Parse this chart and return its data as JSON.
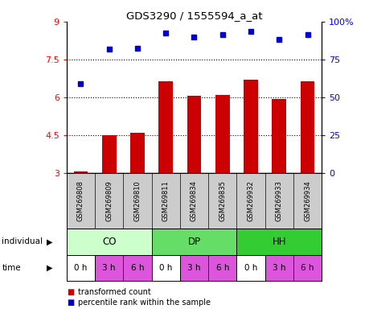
{
  "title": "GDS3290 / 1555594_a_at",
  "samples": [
    "GSM269808",
    "GSM269809",
    "GSM269810",
    "GSM269811",
    "GSM269834",
    "GSM269835",
    "GSM269932",
    "GSM269933",
    "GSM269934"
  ],
  "bar_values": [
    3.05,
    4.5,
    4.6,
    6.65,
    6.05,
    6.1,
    6.7,
    5.95,
    6.65
  ],
  "dot_values": [
    6.55,
    7.9,
    7.95,
    8.55,
    8.4,
    8.5,
    8.6,
    8.3,
    8.5
  ],
  "ylim_left": [
    3,
    9
  ],
  "ylim_right": [
    0,
    100
  ],
  "yticks_left": [
    3,
    4.5,
    6,
    7.5,
    9
  ],
  "yticks_right": [
    0,
    25,
    50,
    75,
    100
  ],
  "ytick_labels_left": [
    "3",
    "4.5",
    "6",
    "7.5",
    "9"
  ],
  "ytick_labels_right": [
    "0",
    "25",
    "50",
    "75",
    "100%"
  ],
  "hlines": [
    4.5,
    6.0,
    7.5
  ],
  "bar_color": "#cc0000",
  "dot_color": "#0000cc",
  "bar_width": 0.5,
  "individuals": [
    {
      "label": "CO",
      "start": 0,
      "end": 3,
      "color": "#ccffcc"
    },
    {
      "label": "DP",
      "start": 3,
      "end": 6,
      "color": "#66dd66"
    },
    {
      "label": "HH",
      "start": 6,
      "end": 9,
      "color": "#33cc33"
    }
  ],
  "time_colors": [
    "#ffffff",
    "#dd55dd",
    "#dd55dd",
    "#ffffff",
    "#dd55dd",
    "#dd55dd",
    "#ffffff",
    "#dd55dd",
    "#dd55dd"
  ],
  "time_labels": [
    "0 h",
    "3 h",
    "6 h",
    "0 h",
    "3 h",
    "6 h",
    "0 h",
    "3 h",
    "6 h"
  ],
  "legend_bar_label": "transformed count",
  "legend_dot_label": "percentile rank within the sample",
  "individual_label": "individual",
  "time_label": "time",
  "bg_color": "#ffffff",
  "sample_bg_color": "#cccccc"
}
